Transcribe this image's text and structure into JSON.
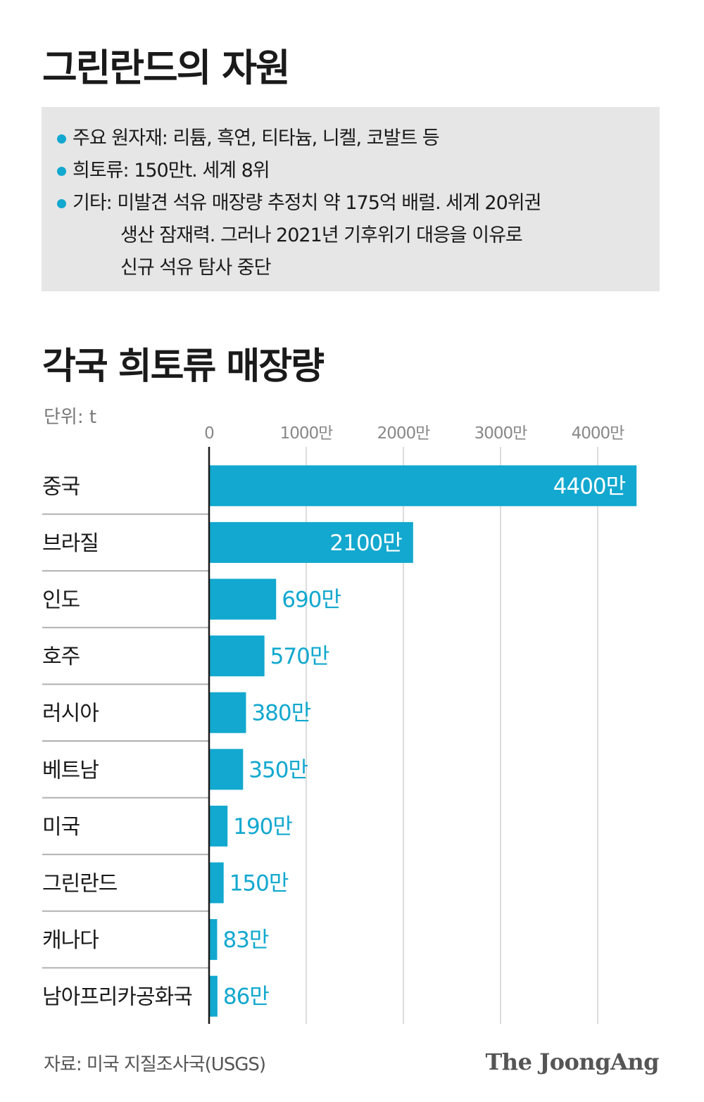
{
  "header": {
    "title": "그린란드의 자원"
  },
  "info": {
    "items": [
      {
        "label": "주요 원자재: 리튬, 흑연, 티타늄, 니켈, 코발트 등",
        "continuation": []
      },
      {
        "label": "희토류: 150만t. 세계 8위",
        "continuation": []
      },
      {
        "label": "기타: 미발견 석유 매장량 추정치 약 175억 배럴. 세계 20위권",
        "continuation": [
          "생산 잠재력. 그러나 2021년 기후위기 대응을 이유로",
          "신규 석유 탐사 중단"
        ]
      }
    ]
  },
  "chart_data": {
    "type": "bar",
    "orientation": "horizontal",
    "title": "각국 희토류 매장량",
    "unit_label": "단위: t",
    "categories": [
      "중국",
      "브라질",
      "인도",
      "호주",
      "러시아",
      "베트남",
      "미국",
      "그린란드",
      "캐나다",
      "남아프리카공화국"
    ],
    "values": [
      44000000,
      21000000,
      6900000,
      5700000,
      3800000,
      3500000,
      1900000,
      1500000,
      830000,
      860000
    ],
    "value_labels": [
      "4400만",
      "2100만",
      "690만",
      "570만",
      "380만",
      "350만",
      "190만",
      "150만",
      "83만",
      "86만"
    ],
    "x_ticks": [
      0,
      10000000,
      20000000,
      30000000,
      40000000
    ],
    "x_tick_labels": [
      "0",
      "1000만",
      "2000만",
      "3000만",
      "4000만"
    ],
    "xlim": [
      0,
      44000000
    ],
    "grid": true,
    "bar_color": "#12a8cf",
    "label_inside_color": "#ffffff",
    "label_outside_color": "#12a8cf"
  },
  "footer": {
    "source": "자료: 미국 지질조사국(USGS)",
    "logo": "The JoongAng"
  },
  "colors": {
    "accent": "#12a8cf",
    "box_bg": "#e6e6e6"
  }
}
